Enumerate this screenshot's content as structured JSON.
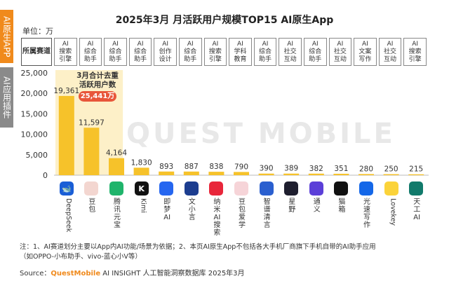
{
  "side_tabs": [
    "AI原生APP",
    "AI应用插件"
  ],
  "title": "2025年3月 月活跃用户规模TOP15 AI原生App",
  "unit_label": "单位：万",
  "track_header": "所属赛道",
  "callout": {
    "line1": "3月合计去重",
    "line2": "活跃用户数",
    "total": "25,441万"
  },
  "watermark": "QUEST MOBILE",
  "colors": {
    "bar": "#f6c22a",
    "first_bar_bg": "#fdf0c8",
    "accent": "#f08a1c",
    "pill": "#e8563a"
  },
  "chart_data": {
    "type": "bar",
    "title": "2025年3月 月活跃用户规模TOP15 AI原生App",
    "ylabel": "单位：万",
    "ylim": [
      0,
      25000
    ],
    "yticks": [
      "0",
      "5,000",
      "10,000",
      "15,000",
      "20,000",
      "25,000"
    ],
    "categories": [
      "DeepSeek",
      "豆包",
      "腾讯元宝",
      "Kimi",
      "即梦AI",
      "文小言",
      "纳米AI搜索",
      "豆包爱学",
      "智谱清言",
      "星野",
      "通义",
      "猫箱",
      "光速写作",
      "Lovekey",
      "天工AI"
    ],
    "tracks": [
      "AI搜索引擎",
      "AI综合助手",
      "AI综合助手",
      "AI综合助手",
      "AI创作设计",
      "AI综合助手",
      "AI搜索引擎",
      "AI学科教育",
      "AI综合助手",
      "AI社交互动",
      "AI综合助手",
      "AI社交互动",
      "AI文案写作",
      "AI社交互动",
      "AI搜索引擎"
    ],
    "values": [
      19361,
      11597,
      4164,
      1830,
      893,
      887,
      838,
      790,
      390,
      389,
      382,
      351,
      280,
      250,
      215
    ],
    "value_labels": [
      "19,361",
      "11,597",
      "4,164",
      "1,830",
      "893",
      "887",
      "838",
      "790",
      "390",
      "389",
      "382",
      "351",
      "280",
      "250",
      "215"
    ],
    "app_icons": [
      "whale-icon",
      "doubao-avatar-icon",
      "yuanbao-icon",
      "kimi-icon",
      "jimeng-icon",
      "wenxiaoyan-icon",
      "nami-icon",
      "aixue-avatar-icon",
      "zhipu-icon",
      "xingye-icon",
      "tongyi-icon",
      "maoxiang-icon",
      "guangsu-icon",
      "lovekey-icon",
      "tiangong-icon"
    ],
    "app_icon_glyphs": [
      "🐋",
      "",
      "",
      "K",
      "",
      "",
      "",
      "",
      "",
      "",
      "",
      "",
      "",
      "",
      ""
    ],
    "grid": false,
    "legend": "none"
  },
  "footnote": {
    "line1": "注：1、AI赛道划分主要以App内AI功能/场景为依据；2、本页AI原生App不包括各大手机厂商旗下手机自带的AI助手应用",
    "line2": "（如OPPO-小布助手、vivo-蓝心小V等）"
  },
  "source": {
    "prefix": "Source：",
    "brand": "QuestMobile",
    "rest": " AI INSIGHT 人工智能洞察数据库 2025年3月"
  }
}
